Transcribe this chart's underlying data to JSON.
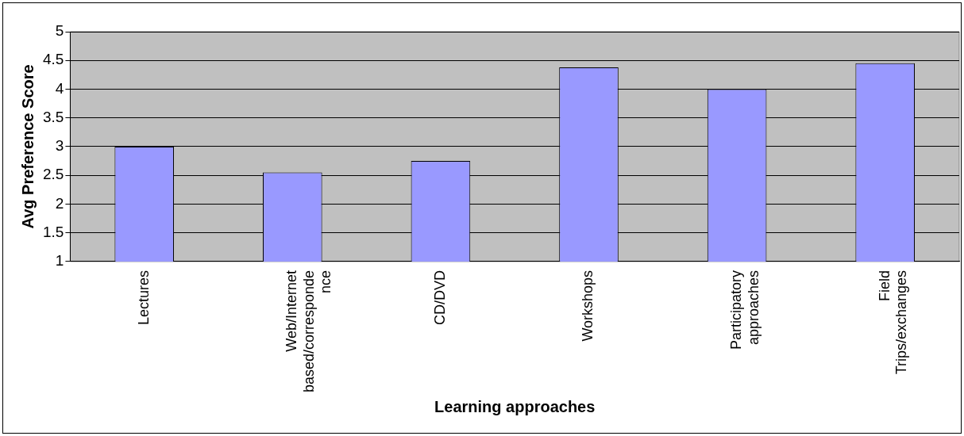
{
  "chart_data": {
    "type": "bar",
    "xlabel": "Learning approaches",
    "ylabel": "Avg Preference Score",
    "categories": [
      "Lectures",
      "Web/Internet based/correspondence",
      "CD/DVD",
      "Workshops",
      "Participatory approaches",
      "Field Trips/exchanges"
    ],
    "values": [
      3.0,
      2.55,
      2.75,
      4.38,
      4.0,
      4.45
    ],
    "color": "#9999ff",
    "ylim": [
      1,
      5
    ],
    "yticks": [
      1,
      1.5,
      2,
      2.5,
      3,
      3.5,
      4,
      4.5,
      5
    ],
    "grid": "y",
    "legend": false
  }
}
